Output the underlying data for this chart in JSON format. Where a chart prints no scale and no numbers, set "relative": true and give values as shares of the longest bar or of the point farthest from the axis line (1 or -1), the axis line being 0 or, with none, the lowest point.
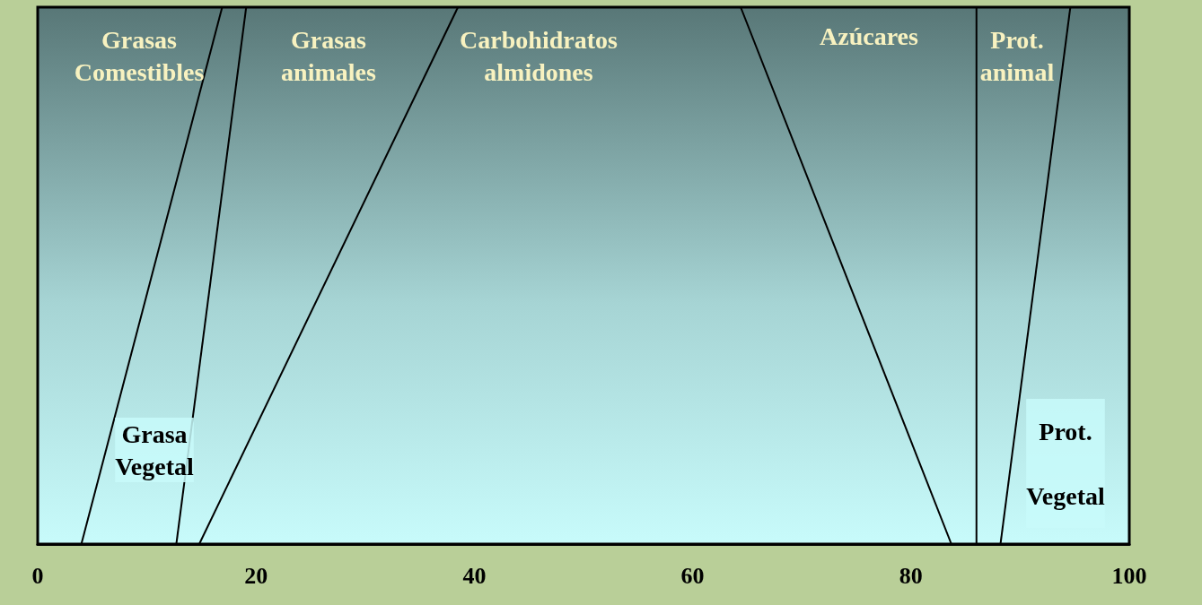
{
  "chart_data": {
    "type": "line",
    "relative": true,
    "xlim": [
      0,
      100
    ],
    "xticks": [
      0,
      20,
      40,
      60,
      80,
      100
    ],
    "grid": false,
    "marker": "none",
    "line_style": "solid",
    "series": [
      {
        "color": "#000000",
        "x": [
          16.9,
          4.0
        ],
        "values": [
          1,
          0
        ]
      },
      {
        "color": "#000000",
        "x": [
          19.1,
          12.7
        ],
        "values": [
          1,
          0
        ]
      },
      {
        "color": "#000000",
        "x": [
          38.5,
          14.8
        ],
        "values": [
          1,
          0
        ]
      },
      {
        "color": "#000000",
        "x": [
          64.4,
          83.7
        ],
        "values": [
          1,
          0
        ]
      },
      {
        "color": "#000000",
        "x": [
          86.0,
          86.0
        ],
        "values": [
          1,
          0
        ]
      },
      {
        "color": "#000000",
        "x": [
          94.6,
          88.2
        ],
        "values": [
          1,
          0
        ]
      }
    ],
    "annotations": [
      "Grasas\nComestibles",
      "Grasas\nanimales",
      "Carbohidratos\nalmidones",
      "Azúcares",
      "Prot.\nanimal",
      "Grasa\nVegetal",
      "Prot.\nVegetal"
    ]
  }
}
